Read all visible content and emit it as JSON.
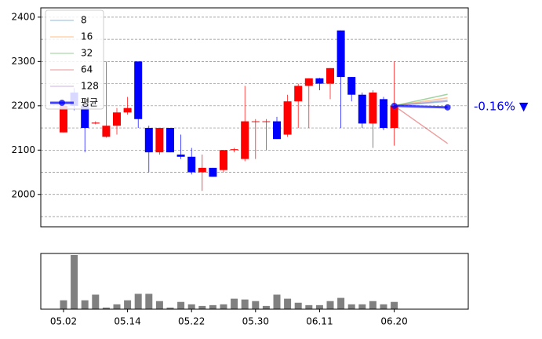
{
  "chart_data": {
    "type": "candlestick",
    "categories": [
      "05.02",
      null,
      null,
      null,
      null,
      null,
      "05.14",
      null,
      null,
      null,
      null,
      null,
      "05.22",
      null,
      null,
      null,
      null,
      null,
      "05.30",
      null,
      null,
      null,
      null,
      null,
      "06.11",
      null,
      null,
      null,
      null,
      null,
      null,
      "06.20",
      null,
      null,
      null,
      null,
      null
    ],
    "open": [
      2140,
      2230,
      2200,
      2160,
      2130,
      2155,
      2185,
      2300,
      2150,
      2095,
      2150,
      2090,
      2085,
      2050,
      2060,
      2055,
      2100,
      2080,
      2165,
      2165,
      2165,
      2135,
      2210,
      2245,
      2262,
      2250,
      2370,
      2265,
      2225,
      2160,
      2215,
      2150,
      null,
      null,
      null,
      null,
      null
    ],
    "high": [
      2205,
      2240,
      2210,
      2165,
      2300,
      2195,
      2220,
      2300,
      2155,
      2150,
      2150,
      2135,
      2105,
      2090,
      2060,
      2100,
      2105,
      2245,
      2170,
      2170,
      2175,
      2225,
      2250,
      2262,
      2263,
      2285,
      2370,
      2265,
      2230,
      2235,
      2220,
      2300,
      null,
      null,
      null,
      null,
      null
    ],
    "low": [
      2140,
      2190,
      2095,
      2158,
      2128,
      2135,
      2180,
      2150,
      2050,
      2090,
      2095,
      2080,
      2045,
      2008,
      2040,
      2050,
      2095,
      2075,
      2080,
      2100,
      2125,
      2130,
      2150,
      2150,
      2235,
      2215,
      2150,
      2210,
      2150,
      2105,
      2145,
      2110,
      null,
      null,
      null,
      null,
      null
    ],
    "close": [
      2200,
      2200,
      2150,
      2162,
      2155,
      2185,
      2195,
      2170,
      2095,
      2150,
      2095,
      2085,
      2050,
      2060,
      2040,
      2100,
      2102,
      2165,
      2165,
      2165,
      2125,
      2210,
      2245,
      2262,
      2250,
      2285,
      2265,
      2225,
      2160,
      2230,
      2150,
      2200,
      null,
      null,
      null,
      null,
      null
    ],
    "volume": [
      11,
      67,
      11,
      18,
      2,
      6,
      11,
      19,
      19,
      10,
      2,
      9,
      6,
      4,
      5,
      6,
      13,
      12,
      10,
      4,
      18,
      13,
      8,
      5,
      5,
      10,
      14,
      6,
      6,
      10,
      6,
      9,
      null,
      null,
      null,
      null,
      null
    ],
    "up_color": "#ff0000",
    "down_color": "#0000ff",
    "volume_color": "#808080",
    "series": [
      {
        "name": "8",
        "color": "#1f77b4",
        "values": [
          null,
          null,
          null,
          null,
          null,
          null,
          null,
          null,
          null,
          null,
          null,
          null,
          null,
          null,
          null,
          null,
          null,
          null,
          null,
          null,
          null,
          null,
          null,
          null,
          null,
          null,
          null,
          null,
          null,
          null,
          null,
          2200,
          null,
          null,
          null,
          null,
          2210
        ]
      },
      {
        "name": "16",
        "color": "#ff7f0e",
        "values": [
          null,
          null,
          null,
          null,
          null,
          null,
          null,
          null,
          null,
          null,
          null,
          null,
          null,
          null,
          null,
          null,
          null,
          null,
          null,
          null,
          null,
          null,
          null,
          null,
          null,
          null,
          null,
          null,
          null,
          null,
          null,
          2200,
          null,
          null,
          null,
          null,
          2218
        ]
      },
      {
        "name": "32",
        "color": "#2ca02c",
        "values": [
          null,
          null,
          null,
          null,
          null,
          null,
          null,
          null,
          null,
          null,
          null,
          null,
          null,
          null,
          null,
          null,
          null,
          null,
          null,
          null,
          null,
          null,
          null,
          null,
          null,
          null,
          null,
          null,
          null,
          null,
          null,
          2200,
          null,
          null,
          null,
          null,
          2226
        ]
      },
      {
        "name": "64",
        "color": "#d62728",
        "values": [
          null,
          null,
          null,
          null,
          null,
          null,
          null,
          null,
          null,
          null,
          null,
          null,
          null,
          null,
          null,
          null,
          null,
          null,
          null,
          null,
          null,
          null,
          null,
          null,
          null,
          null,
          null,
          null,
          null,
          null,
          null,
          2200,
          null,
          null,
          null,
          null,
          2115
        ]
      },
      {
        "name": "128",
        "color": "#9467bd",
        "values": [
          null,
          null,
          null,
          null,
          null,
          null,
          null,
          null,
          null,
          null,
          null,
          null,
          null,
          null,
          null,
          null,
          null,
          null,
          null,
          null,
          null,
          null,
          null,
          null,
          null,
          null,
          null,
          null,
          null,
          null,
          null,
          2200,
          null,
          null,
          null,
          null,
          2213
        ]
      },
      {
        "name": "평균",
        "color": "#0000ff",
        "values": [
          null,
          null,
          null,
          null,
          null,
          null,
          null,
          null,
          null,
          null,
          null,
          null,
          null,
          null,
          null,
          null,
          null,
          null,
          null,
          null,
          null,
          null,
          null,
          null,
          null,
          null,
          null,
          null,
          null,
          null,
          null,
          2200,
          null,
          null,
          null,
          null,
          2196.4
        ]
      }
    ],
    "annotation": "-0.16% ▼",
    "annotation_color": "#0000ff",
    "ylim": [
      1927,
      2421
    ],
    "yticks": [
      2000,
      2100,
      2200,
      2300,
      2400
    ],
    "grid_lines": [
      1950,
      2000,
      2050,
      2100,
      2150,
      2200,
      2250,
      2300,
      2350,
      2400
    ],
    "grid": true,
    "legend": "upper left"
  }
}
